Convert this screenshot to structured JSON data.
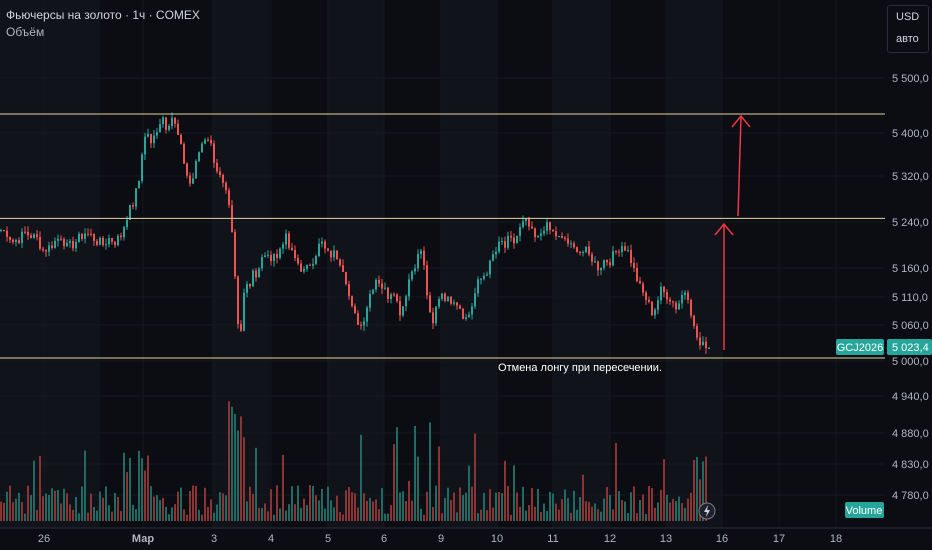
{
  "header": {
    "title": "Фьючерсы на золото · 1ч · COMEX",
    "volume_label": "Объём"
  },
  "units": {
    "currency": "USD",
    "scale_mode": "авто"
  },
  "colors": {
    "up": "#26a69a",
    "down": "#ef5350",
    "level": "#e6d5a0",
    "arrow": "#f23645",
    "background": "#0b0d12"
  },
  "chart_data": {
    "type": "candlestick",
    "symbol": "GCJ2026",
    "last_price": "5 023,4",
    "y_ticks": [
      {
        "value": 5500,
        "label": "5 500,0"
      },
      {
        "value": 5400,
        "label": "5 400,0"
      },
      {
        "value": 5320,
        "label": "5 320,0"
      },
      {
        "value": 5240,
        "label": "5 240,0"
      },
      {
        "value": 5160,
        "label": "5 160,0"
      },
      {
        "value": 5110,
        "label": "5 110,0"
      },
      {
        "value": 5060,
        "label": "5 060,0"
      },
      {
        "value": 5000,
        "label": "5 000,0"
      },
      {
        "value": 4940,
        "label": "4 940,0"
      },
      {
        "value": 4880,
        "label": "4 880,0"
      },
      {
        "value": 4830,
        "label": "4 830,0"
      },
      {
        "value": 4780,
        "label": "4 780,0"
      }
    ],
    "x_ticks": [
      "26",
      "Мар",
      "3",
      "4",
      "5",
      "6",
      "9",
      "10",
      "11",
      "12",
      "13",
      "16",
      "17",
      "18"
    ],
    "levels": [
      5425,
      5245,
      5004
    ],
    "annotation": "Отмена лонгу при пересечении.",
    "volume_label": "Volume",
    "close_path": [
      [
        0,
        5225
      ],
      [
        6,
        5220
      ],
      [
        12,
        5205
      ],
      [
        18,
        5210
      ],
      [
        24,
        5220
      ],
      [
        30,
        5215
      ],
      [
        36,
        5210
      ],
      [
        42,
        5190
      ],
      [
        48,
        5195
      ],
      [
        54,
        5205
      ],
      [
        60,
        5215
      ],
      [
        66,
        5195
      ],
      [
        72,
        5200
      ],
      [
        78,
        5210
      ],
      [
        84,
        5220
      ],
      [
        90,
        5215
      ],
      [
        96,
        5205
      ],
      [
        102,
        5200
      ],
      [
        108,
        5210
      ],
      [
        114,
        5205
      ],
      [
        120,
        5215
      ],
      [
        126,
        5250
      ],
      [
        132,
        5270
      ],
      [
        138,
        5310
      ],
      [
        141,
        5360
      ],
      [
        146,
        5400
      ],
      [
        150,
        5370
      ],
      [
        154,
        5390
      ],
      [
        158,
        5410
      ],
      [
        162,
        5420
      ],
      [
        166,
        5400
      ],
      [
        170,
        5425
      ],
      [
        174,
        5405
      ],
      [
        178,
        5380
      ],
      [
        182,
        5350
      ],
      [
        186,
        5320
      ],
      [
        190,
        5300
      ],
      [
        194,
        5330
      ],
      [
        198,
        5360
      ],
      [
        202,
        5380
      ],
      [
        206,
        5390
      ],
      [
        210,
        5370
      ],
      [
        214,
        5340
      ],
      [
        218,
        5320
      ],
      [
        222,
        5300
      ],
      [
        226,
        5280
      ],
      [
        230,
        5240
      ],
      [
        234,
        5140
      ],
      [
        237,
        5060
      ],
      [
        240,
        5050
      ],
      [
        244,
        5150
      ],
      [
        248,
        5120
      ],
      [
        252,
        5160
      ],
      [
        256,
        5140
      ],
      [
        260,
        5170
      ],
      [
        264,
        5185
      ],
      [
        268,
        5170
      ],
      [
        272,
        5190
      ],
      [
        276,
        5175
      ],
      [
        280,
        5200
      ],
      [
        284,
        5215
      ],
      [
        288,
        5195
      ],
      [
        292,
        5180
      ],
      [
        296,
        5170
      ],
      [
        300,
        5160
      ],
      [
        304,
        5150
      ],
      [
        308,
        5165
      ],
      [
        312,
        5175
      ],
      [
        316,
        5190
      ],
      [
        320,
        5205
      ],
      [
        324,
        5190
      ],
      [
        328,
        5180
      ],
      [
        332,
        5185
      ],
      [
        336,
        5180
      ],
      [
        340,
        5170
      ],
      [
        344,
        5150
      ],
      [
        348,
        5110
      ],
      [
        352,
        5080
      ],
      [
        356,
        5070
      ],
      [
        360,
        5060
      ],
      [
        364,
        5080
      ],
      [
        368,
        5110
      ],
      [
        372,
        5130
      ],
      [
        376,
        5145
      ],
      [
        380,
        5130
      ],
      [
        384,
        5120
      ],
      [
        388,
        5110
      ],
      [
        392,
        5130
      ],
      [
        396,
        5100
      ],
      [
        400,
        5080
      ],
      [
        404,
        5110
      ],
      [
        408,
        5140
      ],
      [
        412,
        5160
      ],
      [
        416,
        5175
      ],
      [
        420,
        5190
      ],
      [
        424,
        5150
      ],
      [
        428,
        5080
      ],
      [
        432,
        5060
      ],
      [
        436,
        5100
      ],
      [
        440,
        5120
      ],
      [
        444,
        5110
      ],
      [
        448,
        5100
      ],
      [
        452,
        5110
      ],
      [
        456,
        5100
      ],
      [
        460,
        5090
      ],
      [
        464,
        5070
      ],
      [
        468,
        5080
      ],
      [
        472,
        5100
      ],
      [
        476,
        5130
      ],
      [
        480,
        5140
      ],
      [
        484,
        5150
      ],
      [
        488,
        5160
      ],
      [
        492,
        5180
      ],
      [
        496,
        5190
      ],
      [
        500,
        5205
      ],
      [
        504,
        5195
      ],
      [
        508,
        5210
      ],
      [
        512,
        5200
      ],
      [
        516,
        5215
      ],
      [
        520,
        5230
      ],
      [
        524,
        5240
      ],
      [
        528,
        5230
      ],
      [
        532,
        5215
      ],
      [
        536,
        5205
      ],
      [
        540,
        5220
      ],
      [
        544,
        5235
      ],
      [
        548,
        5225
      ],
      [
        552,
        5220
      ],
      [
        556,
        5215
      ],
      [
        560,
        5205
      ],
      [
        564,
        5210
      ],
      [
        568,
        5200
      ],
      [
        572,
        5190
      ],
      [
        576,
        5195
      ],
      [
        580,
        5185
      ],
      [
        584,
        5190
      ],
      [
        588,
        5180
      ],
      [
        592,
        5175
      ],
      [
        596,
        5160
      ],
      [
        600,
        5165
      ],
      [
        604,
        5175
      ],
      [
        608,
        5170
      ],
      [
        612,
        5180
      ],
      [
        616,
        5190
      ],
      [
        620,
        5200
      ],
      [
        624,
        5195
      ],
      [
        628,
        5185
      ],
      [
        632,
        5160
      ],
      [
        636,
        5140
      ],
      [
        640,
        5120
      ],
      [
        644,
        5110
      ],
      [
        648,
        5095
      ],
      [
        652,
        5080
      ],
      [
        656,
        5100
      ],
      [
        660,
        5120
      ],
      [
        664,
        5115
      ],
      [
        668,
        5110
      ],
      [
        672,
        5100
      ],
      [
        676,
        5090
      ],
      [
        680,
        5110
      ],
      [
        684,
        5120
      ],
      [
        688,
        5110
      ],
      [
        692,
        5060
      ],
      [
        696,
        5040
      ],
      [
        700,
        5020
      ],
      [
        704,
        5030
      ],
      [
        708,
        5023
      ]
    ]
  }
}
